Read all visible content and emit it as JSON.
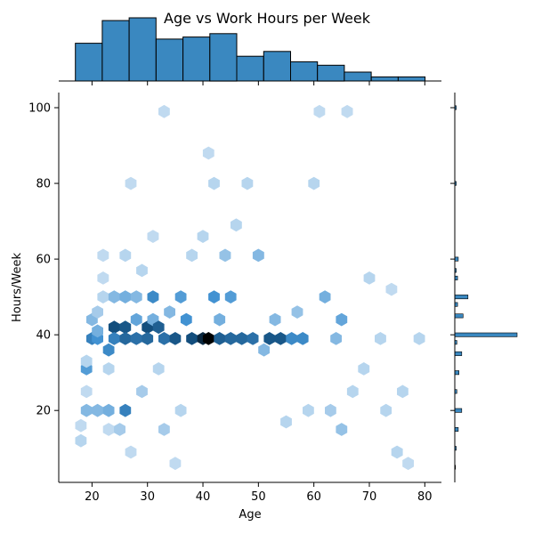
{
  "chart_data": {
    "type": "hexbin",
    "title": "Age vs Work Hours per Week",
    "xlabel": "Age",
    "ylabel": "Hours/Week",
    "xlim": [
      14,
      83
    ],
    "ylim": [
      1,
      104
    ],
    "xticks": [
      "20",
      "30",
      "40",
      "50",
      "60",
      "70",
      "80"
    ],
    "yticks": [
      "20",
      "40",
      "60",
      "80",
      "100"
    ],
    "grid": false,
    "color": "#1f77b4",
    "hist_color": "#3a88c0",
    "hex_points": [
      {
        "x": 18,
        "y": 12,
        "w": 0.15
      },
      {
        "x": 18,
        "y": 16,
        "w": 0.12
      },
      {
        "x": 19,
        "y": 20,
        "w": 0.3
      },
      {
        "x": 19,
        "y": 25,
        "w": 0.12
      },
      {
        "x": 19,
        "y": 31,
        "w": 0.45
      },
      {
        "x": 19,
        "y": 33,
        "w": 0.15
      },
      {
        "x": 20,
        "y": 39,
        "w": 0.6
      },
      {
        "x": 20,
        "y": 44,
        "w": 0.3
      },
      {
        "x": 21,
        "y": 39,
        "w": 0.5
      },
      {
        "x": 21,
        "y": 41,
        "w": 0.35
      },
      {
        "x": 21,
        "y": 20,
        "w": 0.3
      },
      {
        "x": 21,
        "y": 46,
        "w": 0.2
      },
      {
        "x": 22,
        "y": 61,
        "w": 0.12
      },
      {
        "x": 22,
        "y": 55,
        "w": 0.12
      },
      {
        "x": 22,
        "y": 50,
        "w": 0.15
      },
      {
        "x": 23,
        "y": 36,
        "w": 0.55
      },
      {
        "x": 23,
        "y": 20,
        "w": 0.35
      },
      {
        "x": 23,
        "y": 31,
        "w": 0.15
      },
      {
        "x": 23,
        "y": 15,
        "w": 0.12
      },
      {
        "x": 24,
        "y": 42,
        "w": 0.9
      },
      {
        "x": 24,
        "y": 39,
        "w": 0.6
      },
      {
        "x": 24,
        "y": 50,
        "w": 0.3
      },
      {
        "x": 25,
        "y": 15,
        "w": 0.2
      },
      {
        "x": 26,
        "y": 42,
        "w": 0.85
      },
      {
        "x": 26,
        "y": 39,
        "w": 0.75
      },
      {
        "x": 26,
        "y": 20,
        "w": 0.6
      },
      {
        "x": 26,
        "y": 50,
        "w": 0.35
      },
      {
        "x": 26,
        "y": 61,
        "w": 0.15
      },
      {
        "x": 27,
        "y": 80,
        "w": 0.12
      },
      {
        "x": 27,
        "y": 9,
        "w": 0.12
      },
      {
        "x": 28,
        "y": 39,
        "w": 0.7
      },
      {
        "x": 28,
        "y": 44,
        "w": 0.4
      },
      {
        "x": 28,
        "y": 50,
        "w": 0.3
      },
      {
        "x": 29,
        "y": 25,
        "w": 0.2
      },
      {
        "x": 29,
        "y": 57,
        "w": 0.15
      },
      {
        "x": 30,
        "y": 42,
        "w": 0.9
      },
      {
        "x": 30,
        "y": 39,
        "w": 0.75
      },
      {
        "x": 31,
        "y": 50,
        "w": 0.55
      },
      {
        "x": 31,
        "y": 44,
        "w": 0.35
      },
      {
        "x": 31,
        "y": 66,
        "w": 0.12
      },
      {
        "x": 32,
        "y": 42,
        "w": 0.8
      },
      {
        "x": 32,
        "y": 31,
        "w": 0.15
      },
      {
        "x": 33,
        "y": 99,
        "w": 0.12
      },
      {
        "x": 33,
        "y": 39,
        "w": 0.7
      },
      {
        "x": 33,
        "y": 15,
        "w": 0.2
      },
      {
        "x": 34,
        "y": 46,
        "w": 0.3
      },
      {
        "x": 35,
        "y": 6,
        "w": 0.12
      },
      {
        "x": 35,
        "y": 39,
        "w": 0.85
      },
      {
        "x": 36,
        "y": 50,
        "w": 0.45
      },
      {
        "x": 36,
        "y": 20,
        "w": 0.15
      },
      {
        "x": 37,
        "y": 44,
        "w": 0.5
      },
      {
        "x": 38,
        "y": 39,
        "w": 0.9
      },
      {
        "x": 38,
        "y": 61,
        "w": 0.15
      },
      {
        "x": 40,
        "y": 39,
        "w": 0.95
      },
      {
        "x": 40,
        "y": 66,
        "w": 0.15
      },
      {
        "x": 41,
        "y": 39,
        "w": 1.0
      },
      {
        "x": 41,
        "y": 88,
        "w": 0.12
      },
      {
        "x": 42,
        "y": 80,
        "w": 0.15
      },
      {
        "x": 42,
        "y": 50,
        "w": 0.5
      },
      {
        "x": 43,
        "y": 39,
        "w": 0.8
      },
      {
        "x": 43,
        "y": 44,
        "w": 0.35
      },
      {
        "x": 44,
        "y": 61,
        "w": 0.25
      },
      {
        "x": 45,
        "y": 39,
        "w": 0.75
      },
      {
        "x": 45,
        "y": 50,
        "w": 0.45
      },
      {
        "x": 46,
        "y": 69,
        "w": 0.15
      },
      {
        "x": 47,
        "y": 39,
        "w": 0.75
      },
      {
        "x": 48,
        "y": 80,
        "w": 0.15
      },
      {
        "x": 49,
        "y": 39,
        "w": 0.7
      },
      {
        "x": 50,
        "y": 61,
        "w": 0.3
      },
      {
        "x": 51,
        "y": 36,
        "w": 0.3
      },
      {
        "x": 52,
        "y": 39,
        "w": 0.85
      },
      {
        "x": 53,
        "y": 44,
        "w": 0.3
      },
      {
        "x": 54,
        "y": 39,
        "w": 0.85
      },
      {
        "x": 55,
        "y": 17,
        "w": 0.15
      },
      {
        "x": 56,
        "y": 39,
        "w": 0.55
      },
      {
        "x": 57,
        "y": 46,
        "w": 0.25
      },
      {
        "x": 58,
        "y": 39,
        "w": 0.55
      },
      {
        "x": 59,
        "y": 20,
        "w": 0.15
      },
      {
        "x": 60,
        "y": 80,
        "w": 0.15
      },
      {
        "x": 61,
        "y": 99,
        "w": 0.12
      },
      {
        "x": 62,
        "y": 50,
        "w": 0.35
      },
      {
        "x": 63,
        "y": 20,
        "w": 0.2
      },
      {
        "x": 64,
        "y": 39,
        "w": 0.3
      },
      {
        "x": 65,
        "y": 44,
        "w": 0.4
      },
      {
        "x": 65,
        "y": 15,
        "w": 0.25
      },
      {
        "x": 66,
        "y": 99,
        "w": 0.12
      },
      {
        "x": 67,
        "y": 25,
        "w": 0.15
      },
      {
        "x": 69,
        "y": 31,
        "w": 0.15
      },
      {
        "x": 70,
        "y": 55,
        "w": 0.15
      },
      {
        "x": 72,
        "y": 39,
        "w": 0.15
      },
      {
        "x": 73,
        "y": 20,
        "w": 0.15
      },
      {
        "x": 74,
        "y": 52,
        "w": 0.12
      },
      {
        "x": 75,
        "y": 9,
        "w": 0.15
      },
      {
        "x": 76,
        "y": 25,
        "w": 0.15
      },
      {
        "x": 77,
        "y": 6,
        "w": 0.12
      },
      {
        "x": 79,
        "y": 39,
        "w": 0.15
      }
    ],
    "x_hist": {
      "bin_edges": [
        17.0,
        21.85,
        26.7,
        31.55,
        36.4,
        41.25,
        46.1,
        50.95,
        55.8,
        60.65,
        65.5,
        70.35,
        75.2,
        80.05
      ],
      "counts": [
        55,
        88,
        92,
        61,
        64,
        69,
        36,
        43,
        28,
        23,
        13,
        6,
        6
      ]
    },
    "y_hist": {
      "bars": [
        {
          "y": 100,
          "c": 2
        },
        {
          "y": 80,
          "c": 2
        },
        {
          "y": 60,
          "c": 5
        },
        {
          "y": 57,
          "c": 2
        },
        {
          "y": 55,
          "c": 4
        },
        {
          "y": 50,
          "c": 19
        },
        {
          "y": 48,
          "c": 4
        },
        {
          "y": 45,
          "c": 12
        },
        {
          "y": 40,
          "c": 90
        },
        {
          "y": 38,
          "c": 3
        },
        {
          "y": 35,
          "c": 10
        },
        {
          "y": 30,
          "c": 6
        },
        {
          "y": 25,
          "c": 3
        },
        {
          "y": 20,
          "c": 10
        },
        {
          "y": 15,
          "c": 5
        },
        {
          "y": 10,
          "c": 2
        },
        {
          "y": 5,
          "c": 1
        }
      ],
      "max": 90
    }
  }
}
